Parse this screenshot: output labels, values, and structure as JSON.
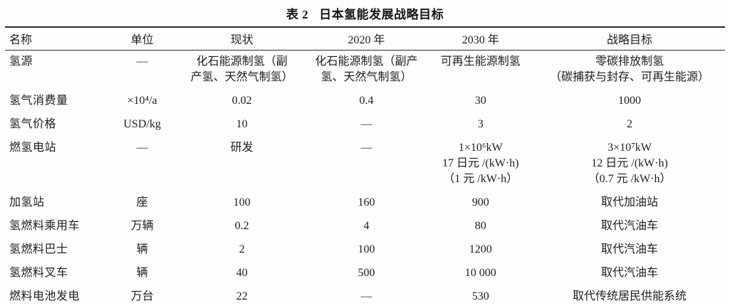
{
  "title": {
    "label": "表 2",
    "text": "日本氢能发展战略目标"
  },
  "table": {
    "headers": [
      "名称",
      "单位",
      "现状",
      "2020 年",
      "2030 年",
      "战略目标"
    ],
    "rows": [
      {
        "name": "氢源",
        "unit": "—",
        "current": [
          "化石能源制氢（副",
          "产氢、天然气制氢）"
        ],
        "y2020": [
          "化石能源制氢（副产",
          "氢、天然气制氢）"
        ],
        "y2030": "可再生能源制氢",
        "goal": [
          "零碳排放制氢",
          "（碳捕获与封存、可再生能源）"
        ]
      },
      {
        "name": "氢气消费量",
        "unit": "×10⁴/a",
        "current": "0.02",
        "y2020": "0.4",
        "y2030": "30",
        "goal": "1000"
      },
      {
        "name": "氢气价格",
        "unit": "USD/kg",
        "current": "10",
        "y2020": "—",
        "y2030": "3",
        "goal": "2"
      },
      {
        "name": "燃氢电站",
        "unit": "—",
        "current": "研发",
        "y2020": "—",
        "y2030": [
          "1×10⁶kW",
          "17 日元 /(kW·h)",
          "（1 元 /kW·h）"
        ],
        "goal": [
          "3×10⁷kW",
          "12 日元 /(kW·h)",
          "（0.7 元 /kW·h）"
        ]
      },
      {
        "name": "加氢站",
        "unit": "座",
        "current": "100",
        "y2020": "160",
        "y2030": "900",
        "goal": "取代加油站"
      },
      {
        "name": "氢燃料乘用车",
        "unit": "万辆",
        "current": "0.2",
        "y2020": "4",
        "y2030": "80",
        "goal": "取代汽油车"
      },
      {
        "name": "氢燃料巴士",
        "unit": "辆",
        "current": "2",
        "y2020": "100",
        "y2030": "1200",
        "goal": "取代汽油车"
      },
      {
        "name": "氢燃料叉车",
        "unit": "辆",
        "current": "40",
        "y2020": "500",
        "y2030": "10 000",
        "goal": "取代汽油车"
      },
      {
        "name": "燃料电池发电",
        "unit": "万台",
        "current": "22",
        "y2020": "—",
        "y2030": "530",
        "goal": "取代传统居民供能系统"
      }
    ]
  }
}
